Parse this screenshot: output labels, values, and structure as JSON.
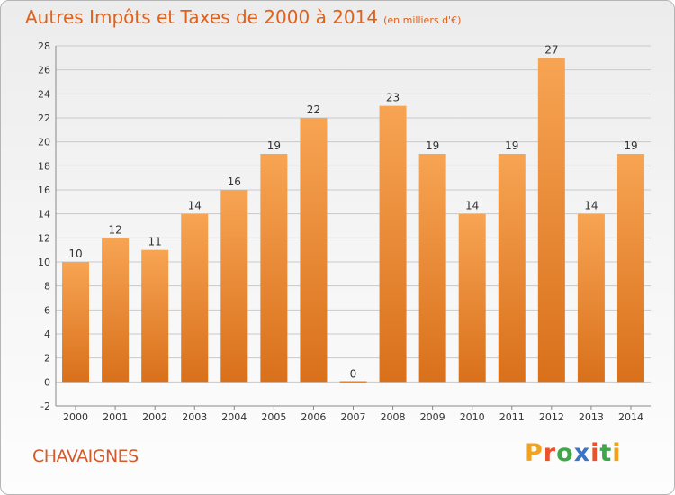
{
  "header": {
    "title": "Autres Impôts et Taxes de 2000 à 2014",
    "unit": "(en milliers d'€)"
  },
  "town": "CHAVAIGNES",
  "logo": {
    "text": "Proxiti",
    "colors": [
      "#f2a21c",
      "#e9522a",
      "#3fa64a",
      "#3a74c5",
      "#e9522a",
      "#3fa64a",
      "#f2a21c"
    ]
  },
  "colors": {
    "bar_top": "#f7a453",
    "bar_bottom": "#d9701b",
    "grid": "#c9c9c9",
    "axis_text": "#333333"
  },
  "chart_data": {
    "type": "bar",
    "title": "Autres Impôts et Taxes de 2000 à 2014",
    "subtitle": "(en milliers d'€)",
    "categories": [
      "2000",
      "2001",
      "2002",
      "2003",
      "2004",
      "2005",
      "2006",
      "2007",
      "2008",
      "2009",
      "2010",
      "2011",
      "2012",
      "2013",
      "2014"
    ],
    "values": [
      10,
      12,
      11,
      14,
      16,
      19,
      22,
      0,
      23,
      19,
      14,
      19,
      27,
      14,
      19
    ],
    "ylim": [
      -2,
      28
    ],
    "yticks": [
      -2,
      0,
      2,
      4,
      6,
      8,
      10,
      12,
      14,
      16,
      18,
      20,
      22,
      24,
      26,
      28
    ],
    "grid": true,
    "data_labels": true
  }
}
